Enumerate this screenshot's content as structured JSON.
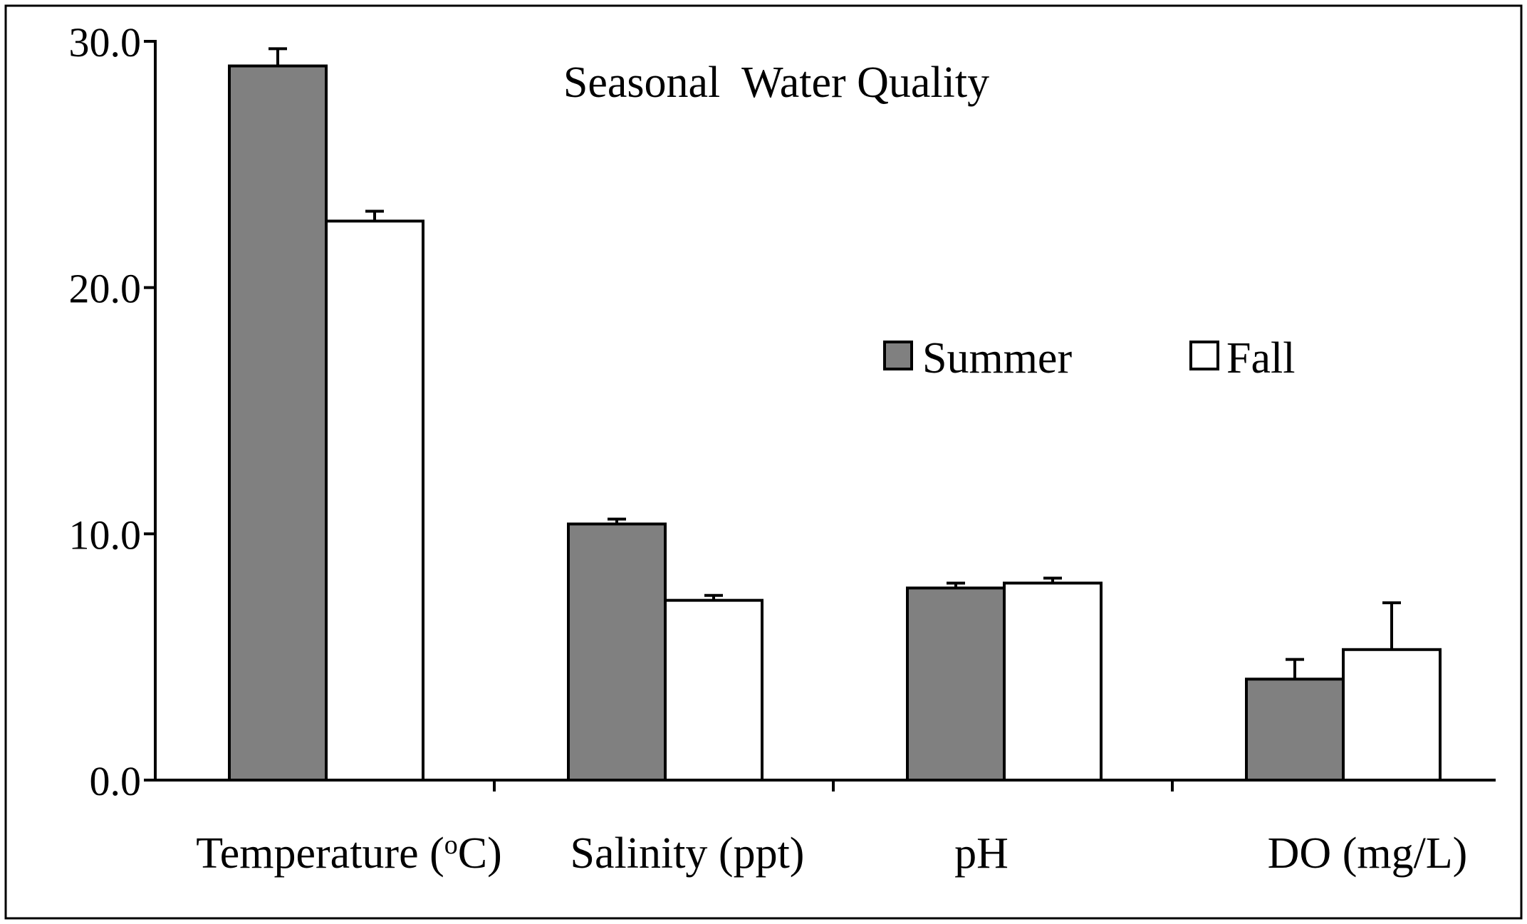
{
  "chart_data": {
    "type": "bar",
    "title": "Seasonal  Water Quality",
    "categories": [
      "Temperature (°C)",
      "Salinity (ppt)",
      "pH",
      "DO (mg/L)"
    ],
    "category_parts": [
      {
        "pre": "Temperature (",
        "sup": "o",
        "post": "C)"
      },
      {
        "pre": "Salinity (ppt)",
        "sup": "",
        "post": ""
      },
      {
        "pre": "pH",
        "sup": "",
        "post": ""
      },
      {
        "pre": "DO (mg/L)",
        "sup": "",
        "post": ""
      }
    ],
    "series": [
      {
        "name": "Summer",
        "color": "#808080",
        "values": [
          29.0,
          10.4,
          7.8,
          4.1
        ],
        "errors": [
          0.7,
          0.2,
          0.2,
          0.8
        ]
      },
      {
        "name": "Fall",
        "color": "#ffffff",
        "values": [
          22.7,
          7.3,
          8.0,
          5.3
        ],
        "errors": [
          0.4,
          0.2,
          0.2,
          1.9
        ]
      }
    ],
    "y_ticks": [
      "0.0",
      "10.0",
      "20.0",
      "30.0"
    ],
    "ylim": [
      0,
      30
    ],
    "xlabel": "",
    "ylabel": "",
    "legend_position": "center-right",
    "grid": false
  }
}
